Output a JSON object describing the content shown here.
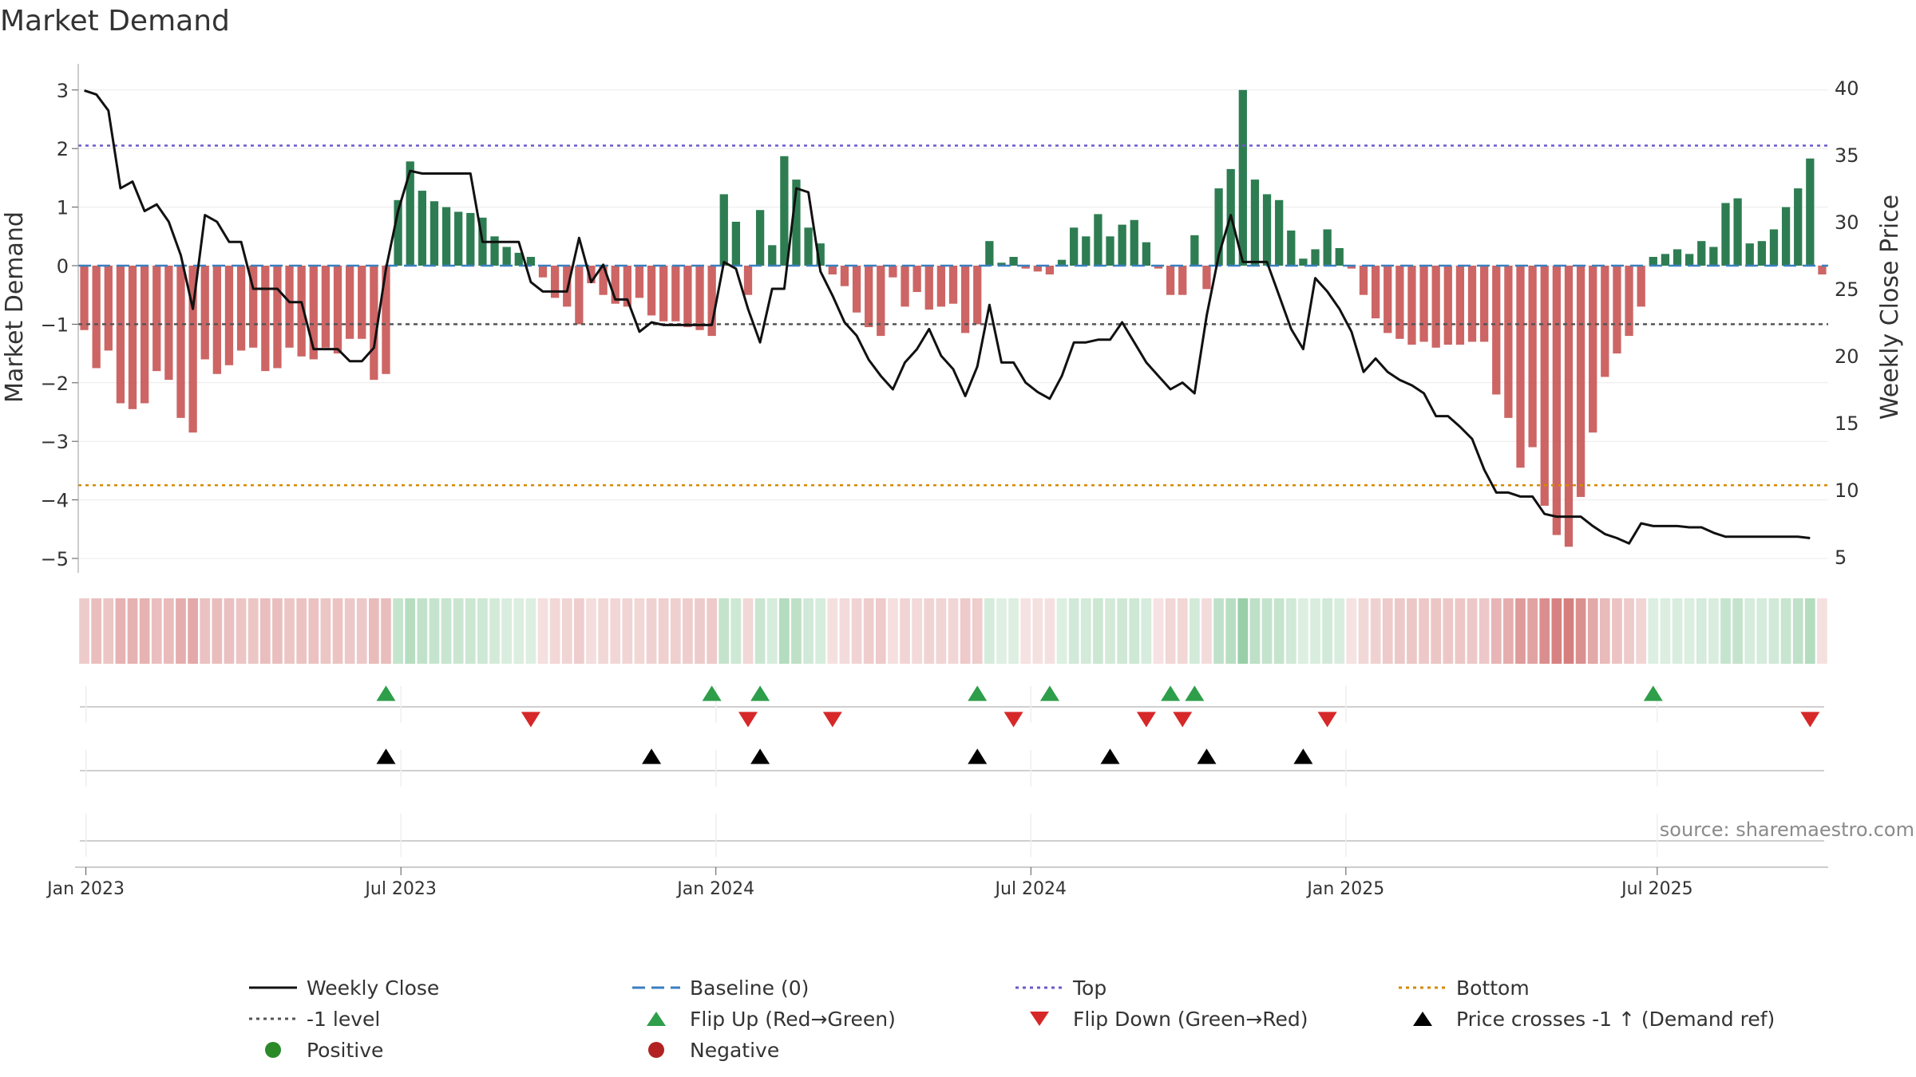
{
  "chart_data": {
    "type": "bar",
    "title": "Market Demand",
    "ylabel": "Market Demand",
    "y2label": "Weekly Close Price",
    "ylim": [
      -5.3,
      3.3
    ],
    "y2lim": [
      3.4,
      42
    ],
    "yticks": [
      3,
      2,
      1,
      0,
      -1,
      -2,
      -3,
      -4,
      -5
    ],
    "y2ticks": [
      40,
      35,
      30,
      25,
      20,
      15,
      10,
      5
    ],
    "xticks": [
      "Jan 2023",
      "Jul 2023",
      "Jan 2024",
      "Jul 2024",
      "Jan 2025",
      "Jul 2025"
    ],
    "reference_lines": {
      "baseline": 0,
      "minus_one": -1,
      "top": 2.05,
      "bottom": -3.75
    },
    "source": "source: sharemaestro.com",
    "demand": [
      -1.1,
      -1.75,
      -1.45,
      -2.35,
      -2.45,
      -2.35,
      -1.8,
      -1.95,
      -2.6,
      -2.85,
      -1.6,
      -1.85,
      -1.7,
      -1.45,
      -1.4,
      -1.8,
      -1.75,
      -1.4,
      -1.55,
      -1.6,
      -1.4,
      -1.5,
      -1.25,
      -1.25,
      -1.95,
      -1.85,
      1.12,
      1.78,
      1.28,
      1.1,
      1.0,
      0.92,
      0.9,
      0.82,
      0.5,
      0.32,
      0.22,
      0.15,
      -0.2,
      -0.55,
      -0.7,
      -1.0,
      -0.3,
      -0.5,
      -0.65,
      -0.7,
      -0.55,
      -0.85,
      -0.95,
      -0.95,
      -1.05,
      -1.1,
      -1.2,
      1.22,
      0.75,
      -0.5,
      0.95,
      0.35,
      1.87,
      1.47,
      0.65,
      0.38,
      -0.15,
      -0.35,
      -0.8,
      -1.05,
      -1.2,
      -0.2,
      -0.7,
      -0.45,
      -0.75,
      -0.7,
      -0.65,
      -1.15,
      -1.0,
      0.42,
      0.05,
      0.15,
      -0.05,
      -0.1,
      -0.15,
      0.1,
      0.65,
      0.5,
      0.88,
      0.5,
      0.7,
      0.78,
      0.4,
      -0.05,
      -0.5,
      -0.5,
      0.52,
      -0.4,
      1.32,
      1.65,
      3.0,
      1.47,
      1.22,
      1.12,
      0.6,
      0.12,
      0.28,
      0.62,
      0.3,
      -0.05,
      -0.5,
      -0.9,
      -1.15,
      -1.25,
      -1.35,
      -1.3,
      -1.4,
      -1.35,
      -1.35,
      -1.3,
      -1.3,
      -2.2,
      -2.6,
      -3.45,
      -3.1,
      -4.1,
      -4.6,
      -4.8,
      -3.95,
      -2.85,
      -1.9,
      -1.5,
      -1.2,
      -0.7,
      0.15,
      0.2,
      0.28,
      0.2,
      0.42,
      0.32,
      1.07,
      1.15,
      0.38,
      0.42,
      0.62,
      1.0,
      1.32,
      1.83,
      -0.15
    ],
    "price": [
      39.8,
      39.5,
      38.3,
      32.5,
      33.0,
      30.8,
      31.3,
      30.0,
      27.5,
      23.5,
      30.5,
      30.0,
      28.5,
      28.5,
      25.0,
      25.0,
      25.0,
      24.0,
      24.0,
      20.5,
      20.5,
      20.5,
      19.6,
      19.6,
      20.6,
      26.5,
      30.8,
      33.8,
      33.6,
      33.6,
      33.6,
      33.6,
      33.6,
      28.5,
      28.5,
      28.5,
      28.5,
      25.5,
      24.8,
      24.8,
      24.8,
      28.8,
      25.5,
      26.8,
      24.2,
      24.2,
      21.8,
      22.5,
      22.3,
      22.3,
      22.3,
      22.3,
      22.3,
      27.0,
      26.5,
      23.5,
      21.0,
      25.0,
      25.0,
      32.5,
      32.2,
      26.3,
      24.5,
      22.5,
      21.5,
      19.7,
      18.5,
      17.5,
      19.5,
      20.5,
      22.0,
      20.0,
      19.0,
      17.0,
      19.2,
      23.8,
      19.5,
      19.5,
      18.0,
      17.3,
      16.8,
      18.5,
      21.0,
      21.0,
      21.2,
      21.2,
      22.5,
      21.0,
      19.5,
      18.5,
      17.5,
      18.0,
      17.2,
      23.0,
      27.5,
      30.5,
      27.0,
      27.0,
      27.0,
      24.5,
      22.0,
      20.5,
      25.8,
      24.8,
      23.5,
      21.8,
      18.8,
      19.8,
      18.8,
      18.2,
      17.8,
      17.2,
      15.5,
      15.5,
      14.7,
      13.8,
      11.5,
      9.8,
      9.8,
      9.5,
      9.5,
      8.2,
      8.0,
      8.0,
      8.0,
      7.3,
      6.7,
      6.4,
      6.0,
      7.5,
      7.3,
      7.3,
      7.3,
      7.2,
      7.2,
      6.8,
      6.5,
      6.5,
      6.5,
      6.5,
      6.5,
      6.5,
      6.5,
      6.4
    ],
    "flip_up": [
      25,
      52,
      56,
      74,
      80,
      90,
      92,
      130
    ],
    "flip_down": [
      37,
      55,
      62,
      77,
      88,
      91,
      103,
      143
    ],
    "price_crosses": [
      25,
      47,
      56,
      74,
      85,
      93,
      101
    ],
    "legend": [
      {
        "label": "Weekly Close",
        "marker": "solid-line",
        "color": "#111111"
      },
      {
        "label": "Baseline (0)",
        "marker": "dashed-line",
        "color": "#3a7fbf"
      },
      {
        "label": "Top",
        "marker": "dotted-line",
        "color": "#6a5acd"
      },
      {
        "label": "Bottom",
        "marker": "dotted-line",
        "color": "#d68a00"
      },
      {
        "label": "-1 level",
        "marker": "dotted-line",
        "color": "#555555"
      },
      {
        "label": "Flip Up (Red→Green)",
        "marker": "triangle-up",
        "color": "#2e9e4a"
      },
      {
        "label": "Flip Down (Green→Red)",
        "marker": "triangle-down",
        "color": "#d62828"
      },
      {
        "label": "Price crosses -1 ↑ (Demand ref)",
        "marker": "triangle-up",
        "color": "#000000"
      },
      {
        "label": "Positive",
        "marker": "circle",
        "color": "#2a8a2a"
      },
      {
        "label": "Negative",
        "marker": "circle",
        "color": "#b22222"
      }
    ],
    "colors": {
      "positive": "#2e7d52",
      "negative": "#c85454",
      "price": "#111111"
    }
  }
}
